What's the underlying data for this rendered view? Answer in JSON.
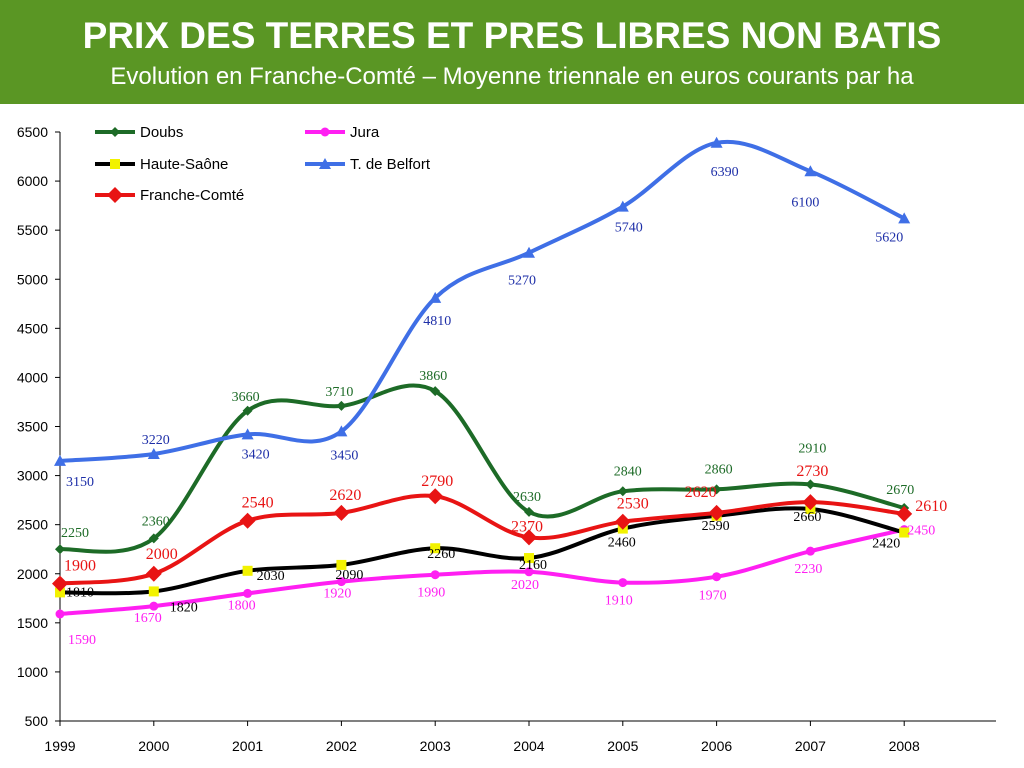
{
  "header": {
    "title": "PRIX DES TERRES ET PRES LIBRES NON BATIS",
    "subtitle": "Evolution en Franche-Comté – Moyenne triennale en euros courants par ha"
  },
  "colors": {
    "header_bg": "#5a9624",
    "Doubs": "#1d6b27",
    "Jura": "#ff1ff2",
    "Haute-Saône": "#000000",
    "T. de Belfort": "#3f6fe6",
    "Franche-Comté": "#e81414",
    "haute_saone_marker": "#f2f200"
  },
  "chart_data": {
    "type": "line",
    "x": [
      "1999",
      "2000",
      "2001",
      "2002",
      "2003",
      "2004",
      "2005",
      "2006",
      "2007",
      "2008"
    ],
    "ylim": [
      500,
      6500
    ],
    "yticks": [
      500,
      1000,
      1500,
      2000,
      2500,
      3000,
      3500,
      4000,
      4500,
      5000,
      5500,
      6000,
      6500
    ],
    "grid": false,
    "smooth": true,
    "legend_position": "top-left",
    "series": [
      {
        "name": "Doubs",
        "marker": "diamond-small",
        "values": [
          2250,
          2360,
          3660,
          3710,
          3860,
          2630,
          2840,
          2860,
          2910,
          2670
        ],
        "labels": [
          "2250",
          "2360",
          "3660",
          "3710",
          "3860",
          "2630",
          "2840",
          "2860",
          "2910",
          "2670"
        ]
      },
      {
        "name": "Jura",
        "marker": "circle",
        "values": [
          1590,
          1670,
          1800,
          1920,
          1990,
          2020,
          1910,
          1970,
          2230,
          2450
        ],
        "labels": [
          "1590",
          "1670",
          "1800",
          "1920",
          "1990",
          "2020",
          "1910",
          "1970",
          "2230",
          "2450"
        ]
      },
      {
        "name": "Haute-Saône",
        "marker": "square",
        "values": [
          1810,
          1820,
          2030,
          2090,
          2260,
          2160,
          2460,
          2590,
          2660,
          2420
        ],
        "labels": [
          "1810",
          "1820",
          "2030",
          "2090",
          "2260",
          "2160",
          "2460",
          "2590",
          "2660",
          "2420"
        ]
      },
      {
        "name": "T. de Belfort",
        "marker": "triangle",
        "values": [
          3150,
          3220,
          3420,
          3450,
          4810,
          5270,
          5740,
          6390,
          6100,
          5620
        ],
        "labels": [
          "3150",
          "3220",
          "3420",
          "3450",
          "4810",
          "5270",
          "5740",
          "6390",
          "6100",
          "5620"
        ]
      },
      {
        "name": "Franche-Comté",
        "marker": "diamond",
        "values": [
          1900,
          2000,
          2540,
          2620,
          2790,
          2370,
          2530,
          2620,
          2730,
          2610
        ],
        "labels": [
          "1900",
          "2000",
          "2540",
          "2620",
          "2790",
          "2370",
          "2530",
          "2620",
          "2730",
          "2610"
        ]
      }
    ]
  }
}
